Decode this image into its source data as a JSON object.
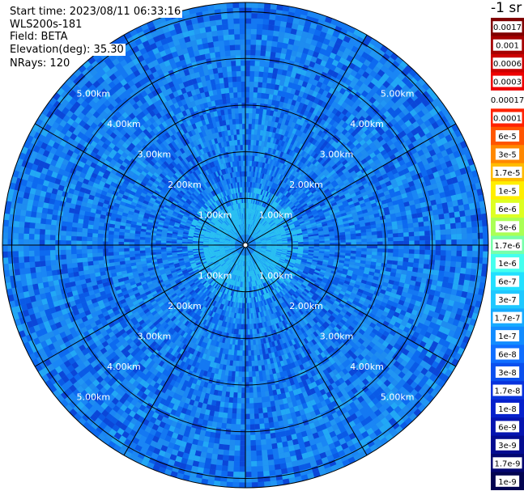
{
  "header": {
    "start_time": "Start time: 2023/08/11 06:33:16",
    "instrument": "WLS200s-181",
    "field": "Field: BETA",
    "elevation": "Elevation(deg): 35.30",
    "nrays": "NRays: 120"
  },
  "colorbar": {
    "unit": "-1 sr",
    "labels": [
      "0.0017",
      "0.001",
      "0.0006",
      "0.0003",
      "0.00017",
      "0.0001",
      "6e-5",
      "3e-5",
      "1.7e-5",
      "1e-5",
      "6e-6",
      "3e-6",
      "1.7e-6",
      "1e-6",
      "6e-7",
      "3e-7",
      "1.7e-7",
      "1e-7",
      "6e-8",
      "3e-8",
      "1.7e-8",
      "1e-8",
      "6e-9",
      "3e-9",
      "1.7e-9",
      "1e-9"
    ],
    "colors": [
      "#800000",
      "#a50000",
      "#cc0000",
      "#ee0000",
      "#ffffff",
      "#ff2200",
      "#ff5500",
      "#ff8800",
      "#ffbb00",
      "#ffee00",
      "#ddff22",
      "#aaff55",
      "#77ffaa",
      "#44ffee",
      "#22e0ff",
      "#1fc8ff",
      "#16aaff",
      "#128cff",
      "#0f6eff",
      "#0b50ee",
      "#0832dd",
      "#0620cc",
      "#0514b0",
      "#040c90",
      "#030670",
      "#020450"
    ]
  },
  "chart_data": {
    "type": "heatmap",
    "projection": "polar (PPI)",
    "field": "BETA",
    "elevation_deg": 35.3,
    "nrays": 120,
    "range_rings_km": [
      1,
      2,
      3,
      4,
      5
    ],
    "ring_labels": [
      "1.00km",
      "2.00km",
      "3.00km",
      "4.00km",
      "5.00km"
    ],
    "max_range_km": 5.2,
    "spokes_deg": [
      0,
      30,
      60,
      90,
      120,
      150,
      180,
      210,
      240,
      270,
      300,
      330
    ],
    "dominant_value_range": [
      "1e-8",
      "3e-7"
    ],
    "near_range_value": "1.7e-7"
  }
}
